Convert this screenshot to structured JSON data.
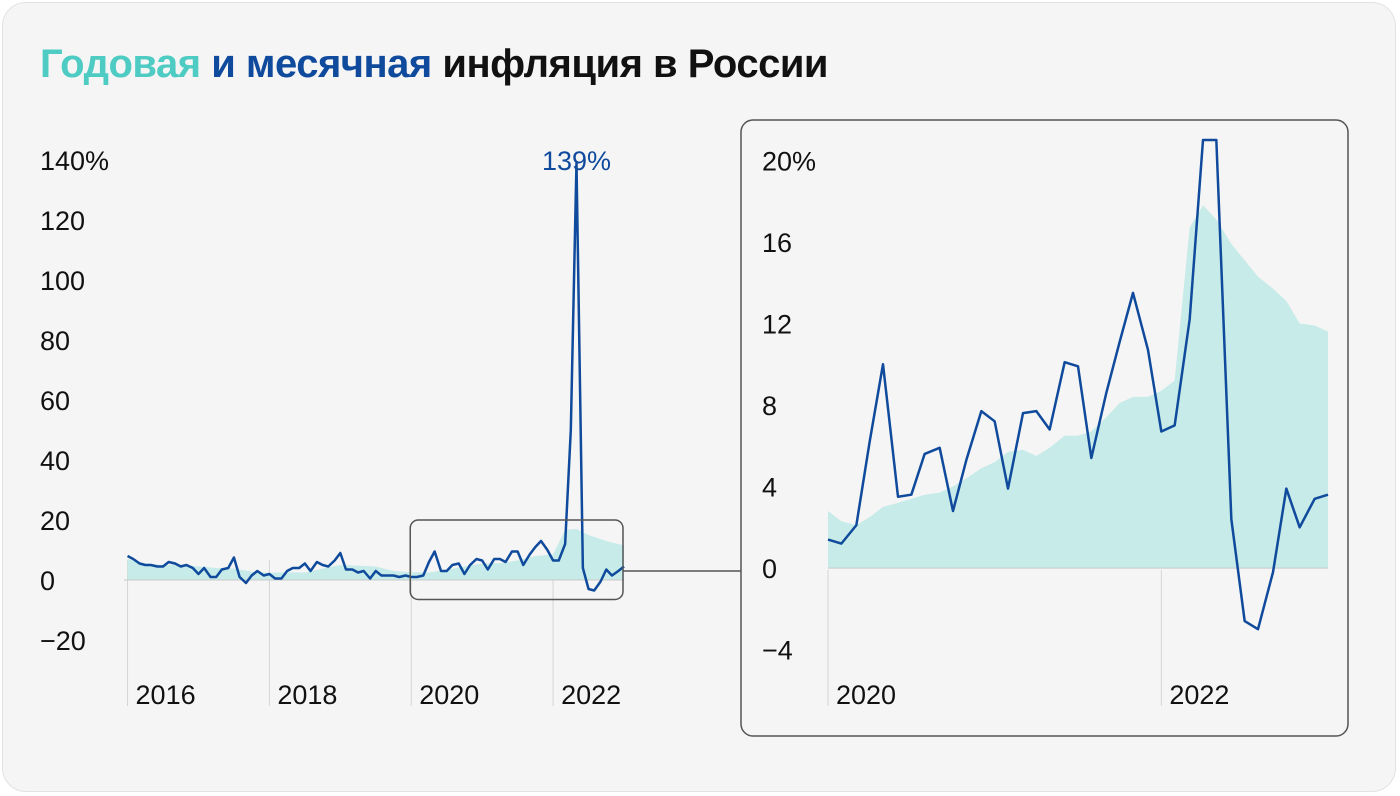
{
  "title": {
    "part_annual": "Годовая",
    "part_monthly": "и месячная",
    "part_rest": "инфляция в России"
  },
  "colors": {
    "annual_fill": "#c6ebe8",
    "monthly_line": "#0f4a9c",
    "title_annual": "#4ecbc3",
    "title_monthly": "#0f4a9c",
    "background": "#f5f5f5",
    "grid": "#d4d4d4"
  },
  "chart_data": [
    {
      "type": "line",
      "title": "",
      "xlabel": "",
      "ylabel": "",
      "ylim": [
        -20,
        140
      ],
      "xlim": [
        2015.95,
        2023.0
      ],
      "yticks": [
        {
          "value": 140,
          "label": "140%"
        },
        {
          "value": 120,
          "label": "120"
        },
        {
          "value": 100,
          "label": "100"
        },
        {
          "value": 80,
          "label": "80"
        },
        {
          "value": 60,
          "label": "60"
        },
        {
          "value": 40,
          "label": "40"
        },
        {
          "value": 20,
          "label": "20"
        },
        {
          "value": 0,
          "label": "0"
        },
        {
          "value": -20,
          "label": "−20"
        }
      ],
      "xticks": [
        {
          "value": 2016,
          "label": "2016"
        },
        {
          "value": 2018,
          "label": "2018"
        },
        {
          "value": 2020,
          "label": "2020"
        },
        {
          "value": 2022,
          "label": "2022"
        }
      ],
      "annotation": {
        "x": 2022.33,
        "y": 139,
        "text": "139%"
      },
      "zoom_box": {
        "x_from": 2020.0,
        "x_to": 2023.0,
        "y_from": -6.5,
        "y_to": 20
      },
      "series": [
        {
          "kind": "area",
          "x": [
            2016.0,
            2016.25,
            2016.5,
            2016.75,
            2017.0,
            2017.25,
            2017.5,
            2017.75,
            2018.0,
            2018.25,
            2018.5,
            2018.75,
            2019.0,
            2019.25,
            2019.5,
            2019.75,
            2020.0,
            2020.25,
            2020.5,
            2020.75,
            2021.0,
            2021.25,
            2021.5,
            2021.75,
            2022.0,
            2022.17,
            2022.33,
            2022.5,
            2022.75,
            2023.0
          ],
          "y": [
            7.0,
            5.5,
            5.0,
            5.2,
            4.5,
            4.0,
            3.8,
            2.8,
            2.4,
            2.6,
            2.5,
            3.8,
            5.0,
            4.8,
            4.5,
            3.0,
            2.6,
            2.5,
            3.4,
            4.5,
            5.5,
            5.6,
            6.5,
            8.0,
            8.5,
            16.7,
            17.0,
            15.0,
            13.0,
            11.5
          ]
        },
        {
          "kind": "line",
          "x": [
            2016.0,
            2016.08,
            2016.17,
            2016.25,
            2016.33,
            2016.42,
            2016.5,
            2016.58,
            2016.67,
            2016.75,
            2016.83,
            2016.92,
            2017.0,
            2017.08,
            2017.17,
            2017.25,
            2017.33,
            2017.42,
            2017.5,
            2017.58,
            2017.67,
            2017.75,
            2017.83,
            2017.92,
            2018.0,
            2018.08,
            2018.17,
            2018.25,
            2018.33,
            2018.42,
            2018.5,
            2018.58,
            2018.67,
            2018.75,
            2018.83,
            2018.92,
            2019.0,
            2019.08,
            2019.17,
            2019.25,
            2019.33,
            2019.42,
            2019.5,
            2019.58,
            2019.67,
            2019.75,
            2019.83,
            2019.92,
            2020.0,
            2020.08,
            2020.17,
            2020.25,
            2020.33,
            2020.42,
            2020.5,
            2020.58,
            2020.67,
            2020.75,
            2020.83,
            2020.92,
            2021.0,
            2021.08,
            2021.17,
            2021.25,
            2021.33,
            2021.42,
            2021.5,
            2021.58,
            2021.67,
            2021.75,
            2021.83,
            2021.92,
            2022.0,
            2022.08,
            2022.17,
            2022.25,
            2022.33,
            2022.42,
            2022.5,
            2022.58,
            2022.67,
            2022.75,
            2022.83,
            2022.92,
            2023.0
          ],
          "y": [
            8.0,
            7.0,
            5.5,
            5.0,
            5.0,
            4.5,
            4.5,
            6.0,
            5.5,
            4.5,
            5.0,
            4.0,
            2.0,
            4.0,
            1.0,
            1.0,
            3.5,
            4.0,
            7.5,
            1.0,
            -1.0,
            1.5,
            3.0,
            1.5,
            2.0,
            0.5,
            0.5,
            3.0,
            4.0,
            4.0,
            5.5,
            3.0,
            6.0,
            5.0,
            4.5,
            6.5,
            9.0,
            3.5,
            3.5,
            2.5,
            3.0,
            0.5,
            3.0,
            1.5,
            1.5,
            1.5,
            1.0,
            1.5,
            1.0,
            1.0,
            1.5,
            6.0,
            9.5,
            3.0,
            3.0,
            5.0,
            5.5,
            2.0,
            5.0,
            7.0,
            6.5,
            3.5,
            7.0,
            7.0,
            6.0,
            9.5,
            9.5,
            5.0,
            8.5,
            11.0,
            13.0,
            10.0,
            6.5,
            6.5,
            12.0,
            50.0,
            139.0,
            4.0,
            -3.0,
            -3.5,
            -0.5,
            3.5,
            1.5,
            3.0,
            4.5
          ]
        }
      ]
    },
    {
      "type": "line",
      "title": "",
      "xlabel": "",
      "ylabel": "",
      "ylim": [
        -5,
        21
      ],
      "xlim": [
        2020.0,
        2023.0
      ],
      "yticks": [
        {
          "value": 20,
          "label": "20%"
        },
        {
          "value": 16,
          "label": "16"
        },
        {
          "value": 12,
          "label": "12"
        },
        {
          "value": 8,
          "label": "8"
        },
        {
          "value": 4,
          "label": "4"
        },
        {
          "value": 0,
          "label": "0"
        },
        {
          "value": -4,
          "label": "−4"
        }
      ],
      "xticks": [
        {
          "value": 2020,
          "label": "2020"
        },
        {
          "value": 2022,
          "label": "2022"
        }
      ],
      "series": [
        {
          "kind": "area",
          "x": [
            2020.0,
            2020.08,
            2020.17,
            2020.25,
            2020.33,
            2020.42,
            2020.5,
            2020.58,
            2020.67,
            2020.75,
            2020.83,
            2020.92,
            2021.0,
            2021.08,
            2021.17,
            2021.25,
            2021.33,
            2021.42,
            2021.5,
            2021.58,
            2021.67,
            2021.75,
            2021.83,
            2021.92,
            2022.0,
            2022.08,
            2022.17,
            2022.25,
            2022.33,
            2022.42,
            2022.5,
            2022.58,
            2022.67,
            2022.75,
            2022.83,
            2022.92,
            2023.0
          ],
          "y": [
            2.8,
            2.3,
            2.1,
            2.5,
            3.0,
            3.2,
            3.4,
            3.6,
            3.7,
            4.0,
            4.4,
            4.9,
            5.2,
            5.7,
            5.8,
            5.5,
            5.9,
            6.5,
            6.5,
            6.7,
            7.4,
            8.1,
            8.4,
            8.4,
            8.7,
            9.2,
            16.7,
            17.8,
            17.1,
            15.9,
            15.1,
            14.3,
            13.7,
            13.1,
            12.0,
            11.9,
            11.6
          ]
        },
        {
          "kind": "line",
          "x": [
            2020.0,
            2020.08,
            2020.17,
            2020.25,
            2020.33,
            2020.42,
            2020.5,
            2020.58,
            2020.67,
            2020.75,
            2020.83,
            2020.92,
            2021.0,
            2021.08,
            2021.17,
            2021.25,
            2021.33,
            2021.42,
            2021.5,
            2021.58,
            2021.67,
            2021.75,
            2021.83,
            2021.92,
            2022.0,
            2022.08,
            2022.17,
            2022.25,
            2022.33,
            2022.42,
            2022.5,
            2022.58,
            2022.67,
            2022.75,
            2022.83,
            2022.92,
            2023.0
          ],
          "y": [
            1.4,
            1.2,
            2.1,
            6.2,
            10.0,
            3.5,
            3.6,
            5.6,
            5.9,
            2.8,
            5.3,
            7.7,
            7.2,
            3.9,
            7.6,
            7.7,
            6.8,
            10.1,
            9.9,
            5.4,
            8.6,
            11.1,
            13.5,
            10.7,
            6.7,
            7.0,
            12.2,
            21.0,
            21.0,
            2.4,
            -2.6,
            -3.0,
            -0.2,
            3.9,
            2.0,
            3.4,
            3.6
          ]
        }
      ]
    }
  ]
}
